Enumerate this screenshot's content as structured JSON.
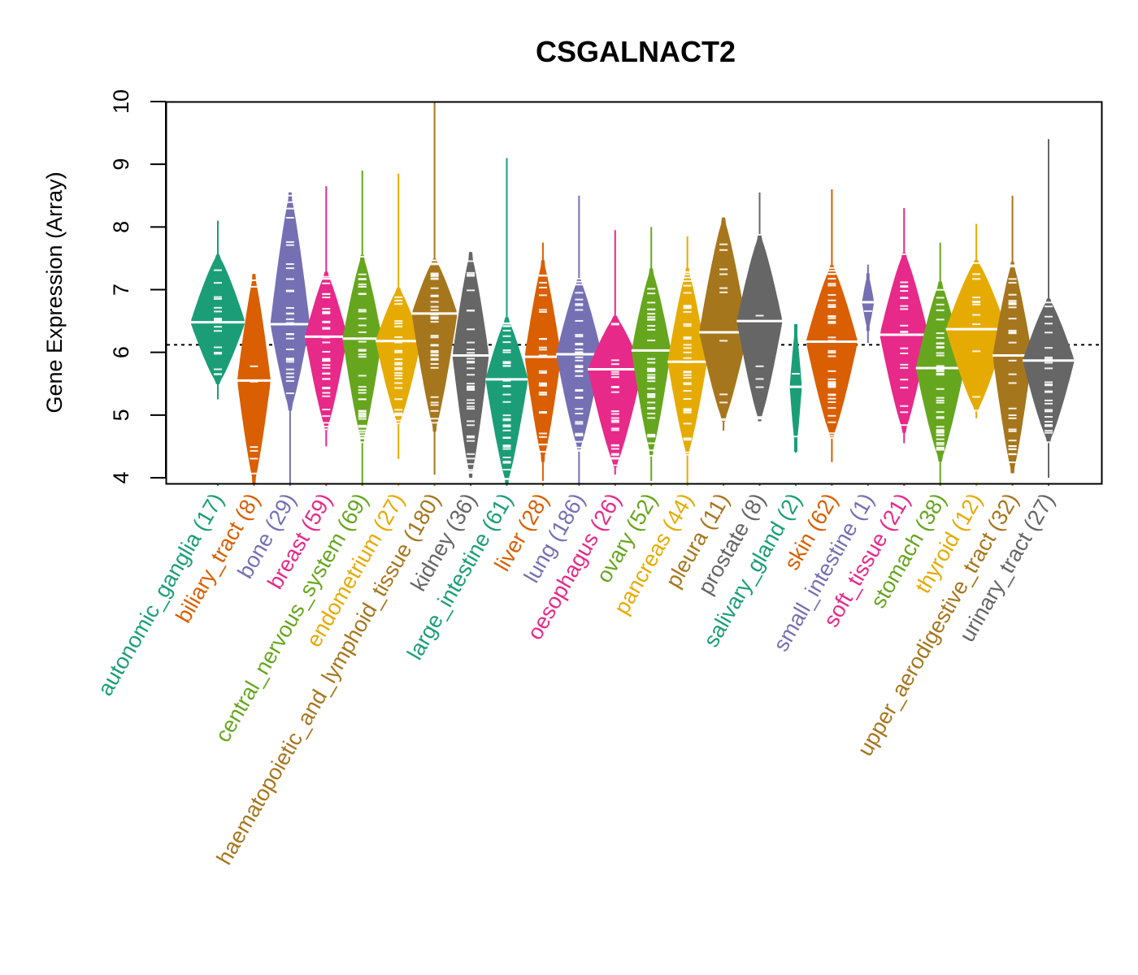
{
  "chart_data": {
    "type": "violin",
    "title": "CSGALNACT2",
    "xlabel": "",
    "ylabel": "Gene Expression (Array)",
    "ylim": [
      4,
      10
    ],
    "yticks": [
      4,
      5,
      6,
      7,
      8,
      9,
      10
    ],
    "reference_line": {
      "value": 6.12,
      "style": "dotted",
      "color": "#000000"
    },
    "grid": false,
    "legend": "none",
    "categories": [
      {
        "name": "autonomic_ganglia",
        "n": 17,
        "color": "#1B9E77",
        "median": 6.48,
        "min": 5.25,
        "max": 8.1,
        "q1": 6.05,
        "q3": 6.95,
        "width": 0.9
      },
      {
        "name": "biliary_tract",
        "n": 8,
        "color": "#D95F02",
        "median": 5.55,
        "min": 3.9,
        "max": 7.25,
        "q1": 4.6,
        "q3": 6.3,
        "width": 0.55
      },
      {
        "name": "bone",
        "n": 29,
        "color": "#7570B3",
        "median": 6.45,
        "min": 3.9,
        "max": 8.55,
        "q1": 5.85,
        "q3": 7.4,
        "width": 0.65
      },
      {
        "name": "breast",
        "n": 59,
        "color": "#E7298A",
        "median": 6.25,
        "min": 4.5,
        "max": 8.65,
        "q1": 5.6,
        "q3": 6.7,
        "width": 0.7
      },
      {
        "name": "central_nervous_system",
        "n": 69,
        "color": "#66A61E",
        "median": 6.22,
        "min": 3.9,
        "max": 8.9,
        "q1": 5.5,
        "q3": 6.8,
        "width": 0.65
      },
      {
        "name": "endometrium",
        "n": 27,
        "color": "#E6AB02",
        "median": 6.18,
        "min": 4.3,
        "max": 8.85,
        "q1": 5.6,
        "q3": 6.55,
        "width": 0.75
      },
      {
        "name": "haematopoietic_and_lymphoid_tissue",
        "n": 180,
        "color": "#A6761D",
        "median": 6.62,
        "min": 4.05,
        "max": 10.0,
        "q1": 5.8,
        "q3": 7.0,
        "width": 0.75
      },
      {
        "name": "kidney",
        "n": 36,
        "color": "#666666",
        "median": 5.95,
        "min": 4.0,
        "max": 7.6,
        "q1": 5.0,
        "q3": 6.7,
        "width": 0.6
      },
      {
        "name": "large_intestine",
        "n": 61,
        "color": "#1B9E77",
        "median": 5.57,
        "min": 3.9,
        "max": 9.1,
        "q1": 4.8,
        "q3": 6.0,
        "width": 0.7
      },
      {
        "name": "liver",
        "n": 28,
        "color": "#D95F02",
        "median": 5.93,
        "min": 3.95,
        "max": 7.75,
        "q1": 5.2,
        "q3": 6.6,
        "width": 0.6
      },
      {
        "name": "lung",
        "n": 186,
        "color": "#7570B3",
        "median": 5.97,
        "min": 3.9,
        "max": 8.5,
        "q1": 5.3,
        "q3": 6.5,
        "width": 0.75
      },
      {
        "name": "oesophagus",
        "n": 26,
        "color": "#E7298A",
        "median": 5.73,
        "min": 4.05,
        "max": 7.95,
        "q1": 5.05,
        "q3": 6.1,
        "width": 0.9
      },
      {
        "name": "ovary",
        "n": 52,
        "color": "#66A61E",
        "median": 6.03,
        "min": 3.95,
        "max": 8.0,
        "q1": 5.3,
        "q3": 6.6,
        "width": 0.65
      },
      {
        "name": "pancreas",
        "n": 44,
        "color": "#E6AB02",
        "median": 5.85,
        "min": 3.9,
        "max": 7.85,
        "q1": 5.2,
        "q3": 6.5,
        "width": 0.65
      },
      {
        "name": "pleura",
        "n": 11,
        "color": "#A6761D",
        "median": 6.32,
        "min": 4.75,
        "max": 8.15,
        "q1": 5.7,
        "q3": 7.15,
        "width": 0.8
      },
      {
        "name": "prostate",
        "n": 8,
        "color": "#666666",
        "median": 6.5,
        "min": 4.9,
        "max": 8.55,
        "q1": 5.8,
        "q3": 7.1,
        "width": 0.75
      },
      {
        "name": "salivary_gland",
        "n": 2,
        "color": "#1B9E77",
        "median": 5.45,
        "min": 4.4,
        "max": 6.45,
        "q1": 5.0,
        "q3": 5.9,
        "width": 0.2
      },
      {
        "name": "skin",
        "n": 62,
        "color": "#D95F02",
        "median": 6.17,
        "min": 4.25,
        "max": 8.6,
        "q1": 5.5,
        "q3": 6.7,
        "width": 0.85
      },
      {
        "name": "small_intestine",
        "n": 1,
        "color": "#7570B3",
        "median": 6.8,
        "min": 6.15,
        "max": 7.4,
        "q1": 6.6,
        "q3": 7.0,
        "width": 0.2
      },
      {
        "name": "soft_tissue",
        "n": 21,
        "color": "#E7298A",
        "median": 6.28,
        "min": 4.55,
        "max": 8.3,
        "q1": 5.6,
        "q3": 6.85,
        "width": 0.8
      },
      {
        "name": "stomach",
        "n": 38,
        "color": "#66A61E",
        "median": 5.75,
        "min": 3.9,
        "max": 7.75,
        "q1": 5.1,
        "q3": 6.35,
        "width": 0.8
      },
      {
        "name": "thyroid",
        "n": 12,
        "color": "#E6AB02",
        "median": 6.37,
        "min": 4.95,
        "max": 8.05,
        "q1": 5.8,
        "q3": 6.85,
        "width": 1.0
      },
      {
        "name": "upper_aerodigestive_tract",
        "n": 32,
        "color": "#A6761D",
        "median": 5.95,
        "min": 4.05,
        "max": 8.5,
        "q1": 5.0,
        "q3": 6.6,
        "width": 0.65
      },
      {
        "name": "urinary_tract",
        "n": 27,
        "color": "#666666",
        "median": 5.87,
        "min": 4.0,
        "max": 9.4,
        "q1": 5.3,
        "q3": 6.3,
        "width": 0.85
      }
    ]
  }
}
